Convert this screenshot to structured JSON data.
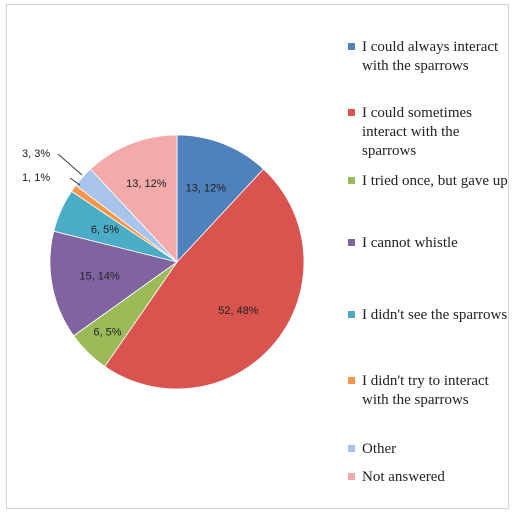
{
  "chart_data": {
    "type": "pie",
    "slices": [
      {
        "label": "I could always interact with the sparrows",
        "value": 13,
        "percent": 12,
        "data_label": "13, 12%",
        "color": "#4f81bd"
      },
      {
        "label": "I could sometimes interact with the sparrows",
        "value": 52,
        "percent": 48,
        "data_label": "52, 48%",
        "color": "#d9534f"
      },
      {
        "label": "I tried once, but gave up",
        "value": 6,
        "percent": 5,
        "data_label": "6, 5%",
        "color": "#9bbb59"
      },
      {
        "label": "I cannot whistle",
        "value": 15,
        "percent": 14,
        "data_label": "15, 14%",
        "color": "#8064a2"
      },
      {
        "label": "I didn't see the sparrows",
        "value": 6,
        "percent": 5,
        "data_label": "6, 5%",
        "color": "#4bacc6"
      },
      {
        "label": "I didn't try to interact with the sparrows",
        "value": 1,
        "percent": 1,
        "data_label": "1, 1%",
        "color": "#f79646"
      },
      {
        "label": "Other",
        "value": 3,
        "percent": 3,
        "data_label": "3, 3%",
        "color": "#a9c4eb"
      },
      {
        "label": "Not answered",
        "value": 13,
        "percent": 12,
        "data_label": "13, 12%",
        "color": "#f2aaaa"
      }
    ],
    "legend_position": "right"
  }
}
